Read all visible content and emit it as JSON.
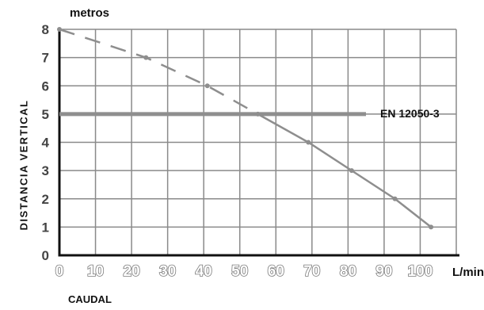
{
  "chart_data": {
    "type": "line",
    "y_unit_label": "metros",
    "x_unit_label": "L/min",
    "xlabel": "CAUDAL",
    "ylabel": "DISTANCIA VERTICAL",
    "xlim": [
      0,
      110
    ],
    "ylim": [
      0,
      8
    ],
    "x_ticks": [
      "0",
      "10",
      "20",
      "30",
      "40",
      "50",
      "60",
      "70",
      "80",
      "90",
      "100"
    ],
    "y_ticks": [
      "0",
      "1",
      "2",
      "3",
      "4",
      "5",
      "6",
      "7",
      "8"
    ],
    "grid": true,
    "series": [
      {
        "x": [
          0,
          24,
          41,
          55,
          69,
          81,
          93,
          103
        ],
        "y": [
          8,
          7,
          6,
          5,
          4,
          3,
          2,
          1
        ]
      }
    ],
    "reference_line": {
      "y": 5,
      "label": "EN 12050-3"
    }
  }
}
